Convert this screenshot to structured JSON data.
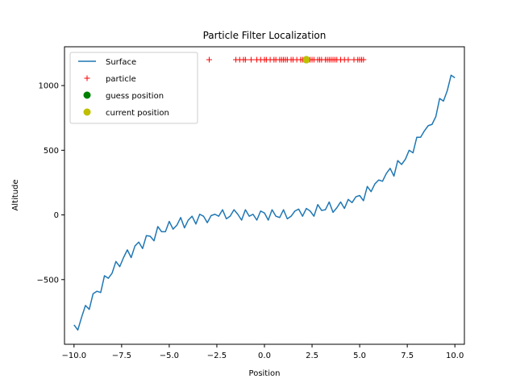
{
  "chart_data": {
    "type": "line",
    "title": "Particle Filter Localization",
    "xlabel": "Position",
    "ylabel": "Altitude",
    "xlim": [
      -10.5,
      10.5
    ],
    "ylim": [
      -1000,
      1300
    ],
    "xticks": [
      -10.0,
      -7.5,
      -5.0,
      -2.5,
      0.0,
      2.5,
      5.0,
      7.5,
      10.0
    ],
    "xtick_labels": [
      "−10.0",
      "−7.5",
      "−5.0",
      "−2.5",
      "0.0",
      "2.5",
      "5.0",
      "7.5",
      "10.0"
    ],
    "yticks": [
      -500,
      0,
      500,
      1000
    ],
    "ytick_labels": [
      "−500",
      "0",
      "500",
      "1000"
    ],
    "legend_position": "top-left",
    "series": [
      {
        "name": "Surface",
        "kind": "line",
        "color": "#1f77b4",
        "x": [
          -10.0,
          -9.8,
          -9.6,
          -9.4,
          -9.2,
          -9.0,
          -8.8,
          -8.6,
          -8.4,
          -8.2,
          -8.0,
          -7.8,
          -7.6,
          -7.4,
          -7.2,
          -7.0,
          -6.8,
          -6.6,
          -6.4,
          -6.2,
          -6.0,
          -5.8,
          -5.6,
          -5.4,
          -5.2,
          -5.0,
          -4.8,
          -4.6,
          -4.4,
          -4.2,
          -4.0,
          -3.8,
          -3.6,
          -3.4,
          -3.2,
          -3.0,
          -2.8,
          -2.6,
          -2.4,
          -2.2,
          -2.0,
          -1.8,
          -1.6,
          -1.4,
          -1.2,
          -1.0,
          -0.8,
          -0.6,
          -0.4,
          -0.2,
          0.0,
          0.2,
          0.4,
          0.6,
          0.8,
          1.0,
          1.2,
          1.4,
          1.6,
          1.8,
          2.0,
          2.2,
          2.4,
          2.6,
          2.8,
          3.0,
          3.2,
          3.4,
          3.6,
          3.8,
          4.0,
          4.2,
          4.4,
          4.6,
          4.8,
          5.0,
          5.2,
          5.4,
          5.6,
          5.8,
          6.0,
          6.2,
          6.4,
          6.6,
          6.8,
          7.0,
          7.2,
          7.4,
          7.6,
          7.8,
          8.0,
          8.2,
          8.4,
          8.6,
          8.8,
          9.0,
          9.2,
          9.4,
          9.6,
          9.8,
          10.0
        ],
        "y": [
          -850,
          -890,
          -790,
          -700,
          -730,
          -610,
          -590,
          -600,
          -470,
          -490,
          -450,
          -360,
          -400,
          -330,
          -270,
          -330,
          -240,
          -210,
          -260,
          -160,
          -165,
          -200,
          -90,
          -130,
          -130,
          -50,
          -110,
          -80,
          -20,
          -100,
          -40,
          -10,
          -70,
          5,
          -10,
          -60,
          -5,
          5,
          -10,
          40,
          -30,
          -10,
          40,
          5,
          -40,
          40,
          -10,
          5,
          -40,
          30,
          15,
          -40,
          40,
          -10,
          -20,
          40,
          -30,
          -10,
          30,
          45,
          -10,
          50,
          30,
          -10,
          80,
          35,
          40,
          100,
          20,
          55,
          100,
          50,
          120,
          95,
          140,
          150,
          110,
          220,
          180,
          240,
          270,
          260,
          320,
          360,
          300,
          420,
          390,
          430,
          500,
          480,
          600,
          600,
          650,
          690,
          700,
          760,
          900,
          880,
          960,
          1080,
          1060
        ]
      },
      {
        "name": "particle",
        "kind": "marker-plus",
        "color": "#ff0000",
        "y_value": 1200,
        "x": [
          -2.9,
          -1.5,
          -1.3,
          -1.1,
          -1.0,
          -0.7,
          -0.4,
          -0.2,
          0.0,
          0.1,
          0.3,
          0.5,
          0.6,
          0.8,
          0.9,
          1.0,
          1.1,
          1.2,
          1.4,
          1.5,
          1.7,
          1.9,
          2.0,
          2.1,
          2.2,
          2.3,
          2.4,
          2.5,
          2.6,
          2.8,
          2.9,
          3.0,
          3.2,
          3.3,
          3.4,
          3.5,
          3.6,
          3.7,
          3.8,
          4.0,
          4.2,
          4.4,
          4.7,
          4.9,
          5.0,
          5.1,
          5.2
        ]
      },
      {
        "name": "guess position",
        "kind": "marker-dot",
        "color": "#008000",
        "x": [
          2.2
        ],
        "y": [
          1200
        ]
      },
      {
        "name": "current position",
        "kind": "marker-dot",
        "color": "#bfbf00",
        "x": [
          2.2
        ],
        "y": [
          1200
        ]
      }
    ]
  }
}
